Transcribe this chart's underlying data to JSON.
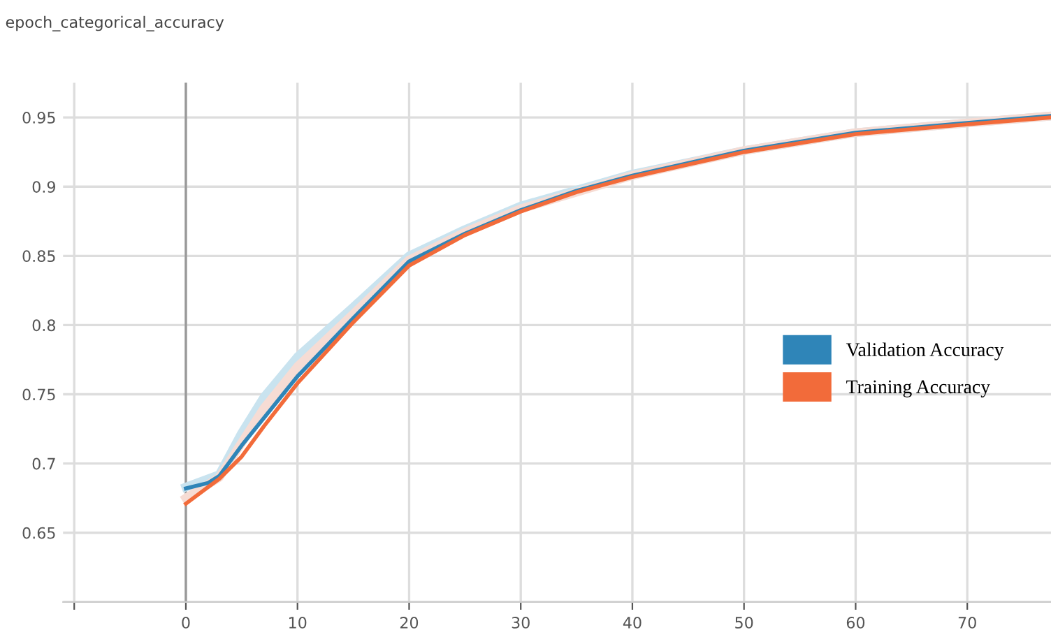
{
  "chart_data": {
    "type": "line",
    "title": "epoch_categorical_accuracy",
    "xlim": [
      -11,
      77.5
    ],
    "xticks": [
      {
        "value": -10,
        "label": null
      },
      0,
      10,
      20,
      30,
      40,
      50,
      60,
      70
    ],
    "ylim": [
      0.6,
      0.975
    ],
    "yticks": [
      {
        "value": 0.6,
        "label": null
      },
      0.65,
      0.7,
      0.75,
      0.8,
      0.85,
      0.9,
      0.95
    ],
    "grid": true,
    "legend": "right",
    "line_style": "solid",
    "marker": "none",
    "ref_lines": [
      {
        "axis": "x",
        "value": 0,
        "color": "#999999"
      }
    ],
    "series": [
      {
        "color": "#c9e3ef",
        "x": [
          0,
          3,
          5,
          7,
          10,
          15,
          20,
          25,
          30,
          40,
          50,
          60,
          70,
          77.5
        ],
        "values": [
          0.683,
          0.692,
          0.722,
          0.748,
          0.777,
          0.813,
          0.85,
          0.869,
          0.886,
          0.909,
          0.926,
          0.939,
          0.946,
          0.951
        ]
      },
      {
        "color": "#f6dcd4",
        "x": [
          0,
          3,
          5,
          7,
          10,
          15,
          20,
          25,
          30,
          40,
          50,
          60,
          70,
          77.5
        ],
        "values": [
          0.675,
          0.69,
          0.715,
          0.74,
          0.77,
          0.808,
          0.847,
          0.867,
          0.884,
          0.908,
          0.926,
          0.939,
          0.946,
          0.951
        ]
      },
      {
        "name": "Validation Accuracy",
        "color": "#2f85b8",
        "x": [
          0,
          2,
          3,
          5,
          7,
          9,
          10,
          15,
          20,
          25,
          30,
          35,
          40,
          50,
          60,
          70,
          77.5
        ],
        "values": [
          0.682,
          0.686,
          0.691,
          0.713,
          0.733,
          0.753,
          0.763,
          0.805,
          0.846,
          0.866,
          0.883,
          0.897,
          0.908,
          0.926,
          0.939,
          0.946,
          0.951
        ]
      },
      {
        "name": "Training Accuracy",
        "color": "#f26b3a",
        "x": [
          0,
          2,
          3,
          5,
          7,
          10,
          15,
          20,
          25,
          30,
          35,
          40,
          50,
          60,
          70,
          77.5
        ],
        "values": [
          0.671,
          0.683,
          0.689,
          0.705,
          0.727,
          0.758,
          0.802,
          0.843,
          0.865,
          0.882,
          0.896,
          0.907,
          0.925,
          0.938,
          0.945,
          0.95
        ]
      }
    ]
  }
}
